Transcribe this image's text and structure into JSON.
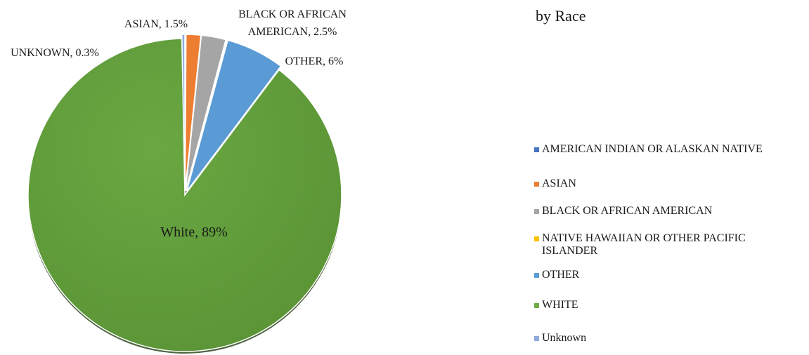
{
  "chart_title_fragment": "by Race",
  "chart_data": {
    "type": "pie",
    "slices": [
      {
        "name": "AMERICAN INDIAN OR ALASKAN NATIVE",
        "value": 0.1,
        "color": "#4472c4",
        "label": ""
      },
      {
        "name": "ASIAN",
        "value": 1.5,
        "color": "#ed7d31",
        "label": "ASIAN, 1.5%"
      },
      {
        "name": "BLACK OR AFRICAN AMERICAN",
        "value": 2.5,
        "color": "#a5a5a5",
        "label": "BLACK  OR AFRICAN AMERICAN, 2.5%"
      },
      {
        "name": "NATIVE HAWAIIAN OR OTHER PACIFIC ISLANDER",
        "value": 0.1,
        "color": "#ffc000",
        "label": ""
      },
      {
        "name": "OTHER",
        "value": 6,
        "color": "#5b9bd5",
        "label": "OTHER,  6%"
      },
      {
        "name": "WHITE",
        "value": 89,
        "color": "#70ad47",
        "label": "White,  89%"
      },
      {
        "name": "Unknown",
        "value": 0.3,
        "color": "#8faadc",
        "label": "UNKNOWN,  0.3%"
      }
    ],
    "legend": [
      {
        "label": "AMERICAN INDIAN OR ALASKAN NATIVE",
        "color": "#4472c4"
      },
      {
        "label": "ASIAN",
        "color": "#ed7d31"
      },
      {
        "label": "BLACK OR AFRICAN AMERICAN",
        "color": "#a5a5a5"
      },
      {
        "label": "NATIVE HAWAIIAN OR OTHER PACIFIC ISLANDER",
        "color": "#ffc000"
      },
      {
        "label": "OTHER",
        "color": "#5b9bd5"
      },
      {
        "label": "WHITE",
        "color": "#70ad47"
      },
      {
        "label": "Unknown",
        "color": "#8faadc"
      }
    ],
    "legend_position": "right"
  }
}
